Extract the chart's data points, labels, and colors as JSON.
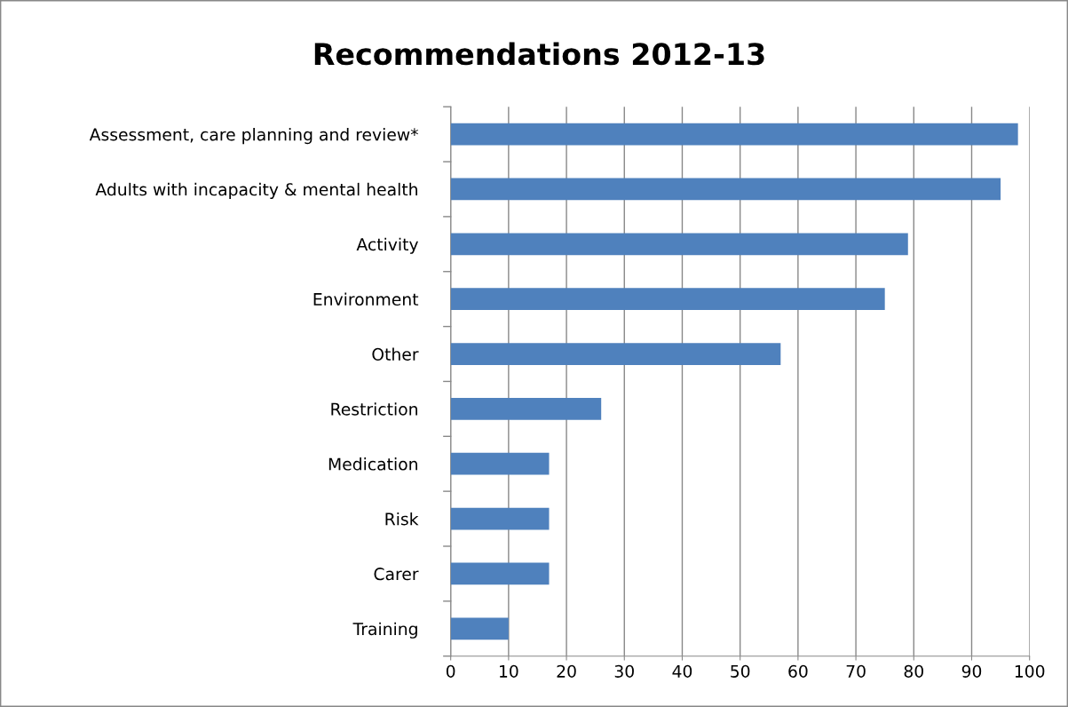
{
  "chart_data": {
    "type": "bar",
    "orientation": "horizontal",
    "title": "Recommendations 2012-13",
    "categories": [
      "Assessment, care planning and review*",
      "Adults with incapacity & mental health",
      "Activity",
      "Environment",
      "Other",
      "Restriction",
      "Medication",
      "Risk",
      "Carer",
      "Training"
    ],
    "values": [
      98,
      95,
      79,
      75,
      57,
      26,
      17,
      17,
      17,
      10
    ],
    "color": "#4f81bd",
    "xlim": [
      0,
      100
    ],
    "xticks": [
      0,
      10,
      20,
      30,
      40,
      50,
      60,
      70,
      80,
      90,
      100
    ],
    "grid": "x",
    "legend": false
  }
}
